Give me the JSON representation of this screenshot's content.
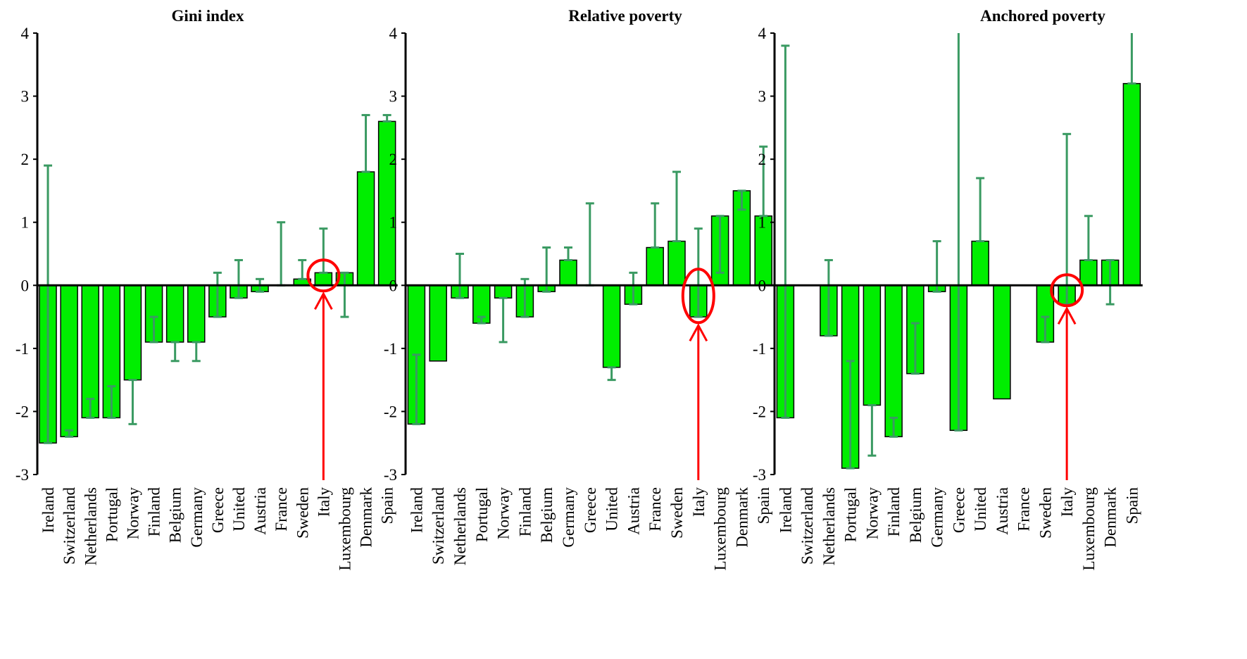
{
  "colors": {
    "bar": "#00ee00",
    "bar_stroke": "#000000",
    "error_bar": "#3a9a62",
    "highlight": "#ff0000",
    "axis": "#000000"
  },
  "chart_data": [
    {
      "type": "bar",
      "title": "Gini index",
      "ylim": [
        -3,
        4
      ],
      "yticks": [
        "-3",
        "-2",
        "-1",
        "0",
        "1",
        "2",
        "3",
        "4"
      ],
      "categories": [
        "Ireland",
        "Switzerland",
        "Netherlands",
        "Portugal",
        "Norway",
        "Finland",
        "Belgium",
        "Germany",
        "Greece",
        "United",
        "Austria",
        "France",
        "Sweden",
        "Italy",
        "Luxembourg",
        "Denmark",
        "Spain"
      ],
      "values": [
        -2.5,
        -2.4,
        -2.1,
        -2.1,
        -1.5,
        -0.9,
        -0.9,
        -0.9,
        -0.5,
        -0.2,
        -0.1,
        0.0,
        0.1,
        0.2,
        0.2,
        1.8,
        2.6
      ],
      "error_low": [
        -2.5,
        -2.3,
        -1.8,
        -1.6,
        -2.2,
        -0.5,
        -1.2,
        -1.2,
        0.2,
        0.4,
        0.1,
        0.0,
        0.1,
        0.2,
        -0.5,
        1.8,
        2.6
      ],
      "error_high": [
        1.9,
        -2.4,
        -2.1,
        -2.1,
        -1.5,
        -0.9,
        -0.9,
        -0.9,
        -0.5,
        -0.2,
        -0.1,
        1.0,
        0.4,
        0.9,
        0.2,
        2.7,
        2.7
      ],
      "highlight": "Italy",
      "grid": false
    },
    {
      "type": "bar",
      "title": "Relative poverty",
      "ylim": [
        -3,
        4
      ],
      "yticks": [
        "-3",
        "-2",
        "-1",
        "0",
        "1",
        "2",
        "3",
        "4"
      ],
      "categories": [
        "Ireland",
        "Switzerland",
        "Netherlands",
        "Portugal",
        "Norway",
        "Finland",
        "Belgium",
        "Germany",
        "Greece",
        "United",
        "Austria",
        "France",
        "Sweden",
        "Italy",
        "Luxembourg",
        "Denmark",
        "Spain"
      ],
      "values": [
        -2.2,
        -1.2,
        -0.2,
        -0.6,
        -0.2,
        -0.5,
        -0.1,
        0.4,
        0.0,
        -1.3,
        -0.3,
        0.6,
        0.7,
        -0.5,
        1.1,
        1.5,
        1.1
      ],
      "error_low": [
        -1.1,
        -1.2,
        -0.2,
        -0.5,
        -0.9,
        0.1,
        -0.1,
        0.4,
        0.0,
        -1.5,
        0.2,
        0.6,
        0.7,
        -0.5,
        0.2,
        1.2,
        1.1
      ],
      "error_high": [
        -2.2,
        -1.2,
        0.5,
        -0.6,
        -0.2,
        -0.5,
        0.6,
        0.6,
        1.3,
        -1.3,
        -0.3,
        1.3,
        1.8,
        0.9,
        1.1,
        1.5,
        2.2
      ],
      "highlight": "Italy",
      "grid": false
    },
    {
      "type": "bar",
      "title": "Anchored poverty",
      "ylim": [
        -3,
        4
      ],
      "yticks": [
        "-3",
        "-2",
        "-1",
        "0",
        "1",
        "2",
        "3",
        "4"
      ],
      "categories": [
        "Ireland",
        "Switzerland",
        "Netherlands",
        "Portugal",
        "Norway",
        "Finland",
        "Belgium",
        "Germany",
        "Greece",
        "United",
        "Austria",
        "France",
        "Sweden",
        "Italy",
        "Luxembourg",
        "Denmark",
        "Spain"
      ],
      "values": [
        -2.1,
        0.0,
        -0.8,
        -2.9,
        -1.9,
        -2.4,
        -1.4,
        -0.1,
        -2.3,
        0.7,
        -1.8,
        0.0,
        -0.9,
        -0.3,
        0.4,
        0.4,
        3.2
      ],
      "error_low": [
        -2.1,
        0.0,
        -0.8,
        -1.2,
        -2.7,
        -2.1,
        -0.6,
        -0.1,
        -2.3,
        0.7,
        -1.8,
        0.0,
        -0.5,
        -0.3,
        0.4,
        -0.3,
        3.2
      ],
      "error_high": [
        3.8,
        0.0,
        0.4,
        -2.9,
        -1.9,
        -2.4,
        -1.4,
        0.7,
        4.0,
        1.7,
        -1.8,
        0.0,
        -0.9,
        2.4,
        1.1,
        0.4,
        4.0
      ],
      "highlight": "Italy",
      "grid": false
    }
  ]
}
